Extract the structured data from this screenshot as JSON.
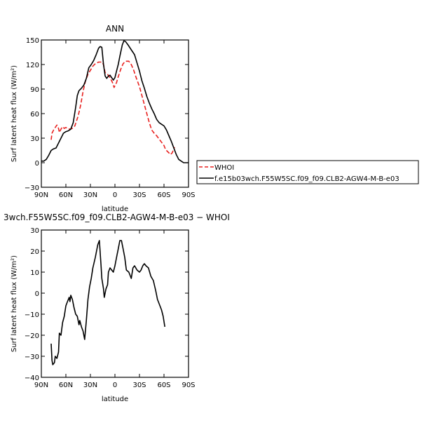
{
  "chart_data": [
    {
      "type": "line",
      "title": "ANN",
      "xlabel": "latitude",
      "ylabel": "Surf latent heat flux (W/m²)",
      "xlim": [
        90,
        -90
      ],
      "ylim": [
        -30,
        150
      ],
      "x_ticks": [
        {
          "value": 90,
          "label": "90N"
        },
        {
          "value": 60,
          "label": "60N"
        },
        {
          "value": 30,
          "label": "30N"
        },
        {
          "value": 0,
          "label": "0"
        },
        {
          "value": -30,
          "label": "30S"
        },
        {
          "value": -60,
          "label": "60S"
        },
        {
          "value": -90,
          "label": "90S"
        }
      ],
      "y_ticks": [
        -30,
        0,
        30,
        60,
        90,
        120,
        150
      ],
      "grid": false,
      "legend_position": "right, outside plot",
      "series": [
        {
          "name": "WHOI",
          "color": "#e8201e",
          "dash": "dashed",
          "points": [
            [
              78,
              28
            ],
            [
              77,
              36
            ],
            [
              75,
              40
            ],
            [
              73,
              43
            ],
            [
              71,
              46
            ],
            [
              69,
              42
            ],
            [
              68,
              37
            ],
            [
              66,
              41
            ],
            [
              64,
              44
            ],
            [
              62,
              42
            ],
            [
              60,
              43
            ],
            [
              58,
              42
            ],
            [
              55,
              41
            ],
            [
              52,
              42
            ],
            [
              49,
              45
            ],
            [
              45,
              57
            ],
            [
              42,
              70
            ],
            [
              39,
              87
            ],
            [
              36,
              100
            ],
            [
              33,
              108
            ],
            [
              30,
              113
            ],
            [
              27,
              118
            ],
            [
              24,
              121
            ],
            [
              20,
              123
            ],
            [
              16,
              123
            ],
            [
              14,
              120
            ],
            [
              12,
              110
            ],
            [
              9,
              108
            ],
            [
              6,
              104
            ],
            [
              3,
              98
            ],
            [
              1,
              92
            ],
            [
              -2,
              98
            ],
            [
              -4,
              105
            ],
            [
              -7,
              114
            ],
            [
              -10,
              121
            ],
            [
              -13,
              124
            ],
            [
              -17,
              124
            ],
            [
              -20,
              120
            ],
            [
              -23,
              113
            ],
            [
              -26,
              104
            ],
            [
              -30,
              93
            ],
            [
              -33,
              82
            ],
            [
              -36,
              71
            ],
            [
              -39,
              60
            ],
            [
              -42,
              49
            ],
            [
              -45,
              40
            ],
            [
              -48,
              36
            ],
            [
              -51,
              33
            ],
            [
              -54,
              29
            ],
            [
              -57,
              25
            ],
            [
              -60,
              21
            ],
            [
              -62,
              16
            ],
            [
              -64,
              14
            ],
            [
              -66,
              12
            ],
            [
              -68,
              10
            ],
            [
              -70,
              12
            ],
            [
              -72,
              17
            ],
            [
              -73,
              19
            ]
          ]
        },
        {
          "name": "f.e15b03wch.F55W5SC.f09_f09.CLB2-AGW4-M-B-e03",
          "color": "#000000",
          "dash": "solid",
          "points": [
            [
              90,
              2
            ],
            [
              87,
              2
            ],
            [
              84,
              4
            ],
            [
              81,
              9
            ],
            [
              78,
              15
            ],
            [
              75,
              17
            ],
            [
              72,
              18
            ],
            [
              69,
              24
            ],
            [
              66,
              30
            ],
            [
              63,
              36
            ],
            [
              60,
              38
            ],
            [
              57,
              39
            ],
            [
              54,
              41
            ],
            [
              51,
              49
            ],
            [
              48,
              68
            ],
            [
              46,
              82
            ],
            [
              44,
              88
            ],
            [
              41,
              91
            ],
            [
              38,
              95
            ],
            [
              35,
              103
            ],
            [
              32,
              116
            ],
            [
              29,
              120
            ],
            [
              26,
              125
            ],
            [
              23,
              132
            ],
            [
              20,
              140
            ],
            [
              18,
              142
            ],
            [
              16,
              141
            ],
            [
              14,
              120
            ],
            [
              12,
              106
            ],
            [
              10,
              103
            ],
            [
              8,
              106
            ],
            [
              6,
              107
            ],
            [
              4,
              104
            ],
            [
              2,
              101
            ],
            [
              0,
              104
            ],
            [
              -2,
              112
            ],
            [
              -4,
              120
            ],
            [
              -6,
              130
            ],
            [
              -9,
              144
            ],
            [
              -11,
              149
            ],
            [
              -13,
              148
            ],
            [
              -16,
              144
            ],
            [
              -20,
              138
            ],
            [
              -24,
              132
            ],
            [
              -27,
              122
            ],
            [
              -30,
              112
            ],
            [
              -33,
              100
            ],
            [
              -36,
              91
            ],
            [
              -39,
              81
            ],
            [
              -42,
              73
            ],
            [
              -45,
              66
            ],
            [
              -48,
              60
            ],
            [
              -51,
              53
            ],
            [
              -54,
              49
            ],
            [
              -57,
              47
            ],
            [
              -60,
              45
            ],
            [
              -63,
              40
            ],
            [
              -66,
              33
            ],
            [
              -69,
              26
            ],
            [
              -72,
              18
            ],
            [
              -75,
              10
            ],
            [
              -78,
              4
            ],
            [
              -81,
              2
            ],
            [
              -84,
              0
            ],
            [
              -87,
              0
            ],
            [
              -90,
              0
            ]
          ]
        }
      ]
    },
    {
      "type": "line",
      "title": "3wch.F55W5SC.f09_f09.CLB2-AGW4-M-B-e03 − WHOI",
      "xlabel": "latitude",
      "ylabel": "Surf latent heat flux (W/m²)",
      "xlim": [
        90,
        -90
      ],
      "ylim": [
        -40,
        30
      ],
      "x_ticks": [
        {
          "value": 90,
          "label": "90N"
        },
        {
          "value": 60,
          "label": "60N"
        },
        {
          "value": 30,
          "label": "30N"
        },
        {
          "value": 0,
          "label": "0"
        },
        {
          "value": -30,
          "label": "30S"
        },
        {
          "value": -60,
          "label": "60S"
        },
        {
          "value": -90,
          "label": "90S"
        }
      ],
      "y_ticks": [
        -40,
        -30,
        -20,
        -10,
        0,
        10,
        20,
        30
      ],
      "grid": false,
      "series": [
        {
          "color": "#000000",
          "dash": "solid",
          "points": [
            [
              78,
              -24
            ],
            [
              77,
              -32
            ],
            [
              76,
              -34
            ],
            [
              74,
              -33
            ],
            [
              73,
              -30
            ],
            [
              71,
              -31
            ],
            [
              69,
              -28
            ],
            [
              68,
              -19
            ],
            [
              66,
              -20
            ],
            [
              64,
              -14
            ],
            [
              62,
              -11
            ],
            [
              60,
              -6
            ],
            [
              58,
              -4
            ],
            [
              56,
              -2
            ],
            [
              55,
              -4
            ],
            [
              54,
              -1
            ],
            [
              52,
              -3
            ],
            [
              50,
              -7
            ],
            [
              48,
              -10
            ],
            [
              46,
              -11
            ],
            [
              44,
              -15
            ],
            [
              43,
              -13
            ],
            [
              41,
              -16
            ],
            [
              39,
              -18
            ],
            [
              37,
              -22
            ],
            [
              35,
              -13
            ],
            [
              33,
              -3
            ],
            [
              31,
              3
            ],
            [
              29,
              7
            ],
            [
              27,
              12
            ],
            [
              24,
              17
            ],
            [
              21,
              23
            ],
            [
              19,
              25
            ],
            [
              17,
              13
            ],
            [
              16,
              7
            ],
            [
              14,
              2
            ],
            [
              13,
              -2
            ],
            [
              11,
              2
            ],
            [
              9,
              4
            ],
            [
              8,
              10
            ],
            [
              6,
              12
            ],
            [
              4,
              11
            ],
            [
              2,
              10
            ],
            [
              0,
              13
            ],
            [
              -2,
              17
            ],
            [
              -4,
              21
            ],
            [
              -6,
              25
            ],
            [
              -8,
              25
            ],
            [
              -10,
              21
            ],
            [
              -12,
              17
            ],
            [
              -14,
              11
            ],
            [
              -17,
              10
            ],
            [
              -20,
              7
            ],
            [
              -22,
              12
            ],
            [
              -24,
              13
            ],
            [
              -27,
              11
            ],
            [
              -30,
              10
            ],
            [
              -32,
              11
            ],
            [
              -34,
              13
            ],
            [
              -36,
              14
            ],
            [
              -38,
              13
            ],
            [
              -41,
              12
            ],
            [
              -44,
              8
            ],
            [
              -47,
              6
            ],
            [
              -50,
              1
            ],
            [
              -52,
              -3
            ],
            [
              -55,
              -6
            ],
            [
              -57,
              -8
            ],
            [
              -59,
              -11
            ],
            [
              -61,
              -16
            ]
          ]
        }
      ]
    }
  ]
}
